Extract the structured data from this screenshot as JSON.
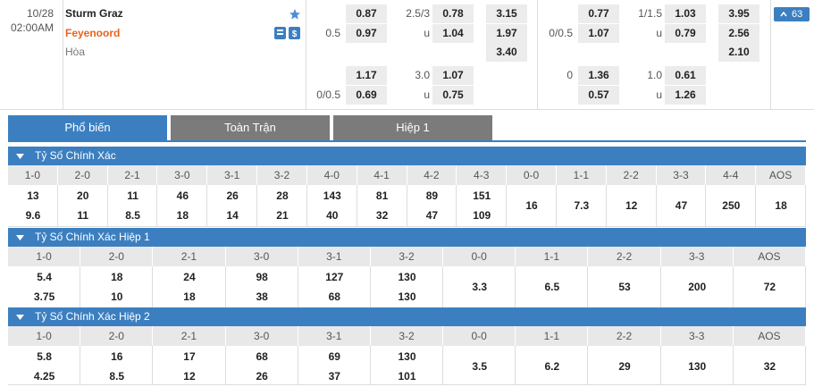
{
  "match": {
    "date": "10/28",
    "time": "02:00AM",
    "home": "Sturm Graz",
    "away": "Feyenoord",
    "draw": "Hòa",
    "more_count": "63"
  },
  "odds": {
    "full_time": [
      [
        null,
        "0.87",
        "2.5/3",
        "0.78",
        "3.15"
      ],
      [
        "0.5",
        "0.97",
        "u",
        "1.04",
        "1.97"
      ],
      [
        null,
        null,
        null,
        null,
        "3.40"
      ],
      [
        null,
        "1.17",
        "3.0",
        "1.07",
        null
      ],
      [
        "0/0.5",
        "0.69",
        "u",
        "0.75",
        null
      ]
    ],
    "first_half": [
      [
        null,
        "0.77",
        "1/1.5",
        "1.03",
        "3.95"
      ],
      [
        "0/0.5",
        "1.07",
        "u",
        "0.79",
        "2.56"
      ],
      [
        null,
        null,
        null,
        null,
        "2.10"
      ],
      [
        "0",
        "1.36",
        "1.0",
        "0.61",
        null
      ],
      [
        null,
        "0.57",
        "u",
        "1.26",
        null
      ]
    ]
  },
  "tabs": [
    "Phổ biến",
    "Toàn Trận",
    "Hiệp 1"
  ],
  "sections": [
    {
      "title": "Tỷ Số Chính Xác",
      "columns": [
        "1-0",
        "2-0",
        "2-1",
        "3-0",
        "3-1",
        "3-2",
        "4-0",
        "4-1",
        "4-2",
        "4-3",
        "0-0",
        "1-1",
        "2-2",
        "3-3",
        "4-4",
        "AOS"
      ],
      "odds": [
        [
          "13",
          "9.6"
        ],
        [
          "20",
          "11"
        ],
        [
          "11",
          "8.5"
        ],
        [
          "46",
          "18"
        ],
        [
          "26",
          "14"
        ],
        [
          "28",
          "21"
        ],
        [
          "143",
          "40"
        ],
        [
          "81",
          "32"
        ],
        [
          "89",
          "47"
        ],
        [
          "151",
          "109"
        ],
        [
          "16"
        ],
        [
          "7.3"
        ],
        [
          "12"
        ],
        [
          "47"
        ],
        [
          "250"
        ],
        [
          "18"
        ]
      ]
    },
    {
      "title": "Tỷ Số Chính Xác Hiệp 1",
      "columns": [
        "1-0",
        "2-0",
        "2-1",
        "3-0",
        "3-1",
        "3-2",
        "0-0",
        "1-1",
        "2-2",
        "3-3",
        "AOS"
      ],
      "odds": [
        [
          "5.4",
          "3.75"
        ],
        [
          "18",
          "10"
        ],
        [
          "24",
          "18"
        ],
        [
          "98",
          "38"
        ],
        [
          "127",
          "68"
        ],
        [
          "130",
          "130"
        ],
        [
          "3.3"
        ],
        [
          "6.5"
        ],
        [
          "53"
        ],
        [
          "200"
        ],
        [
          "72"
        ]
      ]
    },
    {
      "title": "Tỷ Số Chính Xác Hiệp 2",
      "columns": [
        "1-0",
        "2-0",
        "2-1",
        "3-0",
        "3-1",
        "3-2",
        "0-0",
        "1-1",
        "2-2",
        "3-3",
        "AOS"
      ],
      "odds": [
        [
          "5.8",
          "4.25"
        ],
        [
          "16",
          "8.5"
        ],
        [
          "17",
          "12"
        ],
        [
          "68",
          "26"
        ],
        [
          "69",
          "37"
        ],
        [
          "130",
          "101"
        ],
        [
          "3.5"
        ],
        [
          "6.2"
        ],
        [
          "29"
        ],
        [
          "130"
        ],
        [
          "32"
        ]
      ]
    }
  ]
}
